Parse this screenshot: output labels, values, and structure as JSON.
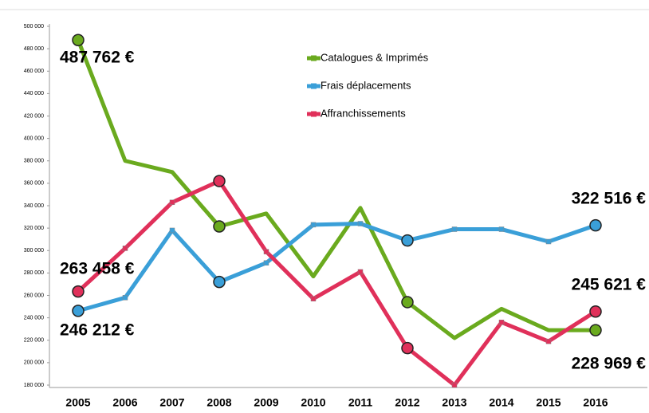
{
  "chart_data": {
    "type": "line",
    "categories": [
      "2005",
      "2006",
      "2007",
      "2008",
      "2009",
      "2010",
      "2011",
      "2012",
      "2013",
      "2014",
      "2015",
      "2016"
    ],
    "series": [
      {
        "name": "Catalogues & Imprimés",
        "color": "#6aaa1e",
        "values": [
          487762,
          380000,
          370000,
          321500,
          333000,
          277000,
          338000,
          254000,
          222000,
          248000,
          229000,
          228969
        ],
        "value_labels": [
          "487 762 €",
          null,
          null,
          null,
          null,
          null,
          null,
          null,
          null,
          null,
          null,
          "228 969 €"
        ]
      },
      {
        "name": "Frais déplacements",
        "color": "#3a9fd8",
        "values": [
          246212,
          258000,
          318000,
          272000,
          289000,
          323000,
          324000,
          309000,
          319000,
          319000,
          308000,
          322516
        ],
        "value_labels": [
          "246 212 €",
          null,
          null,
          null,
          null,
          null,
          null,
          null,
          null,
          null,
          null,
          "322 516 €"
        ]
      },
      {
        "name": "Affranchissements",
        "color": "#e0305a",
        "values": [
          263458,
          302000,
          343000,
          362000,
          299000,
          257000,
          281000,
          213000,
          180000,
          236000,
          219000,
          245621
        ],
        "value_labels": [
          "263 458 €",
          null,
          null,
          null,
          null,
          null,
          null,
          null,
          null,
          null,
          null,
          "245 621 €"
        ]
      }
    ],
    "ylim": [
      180000,
      500000
    ],
    "yticks": [
      {
        "value": 180000,
        "label": "180 000"
      },
      {
        "value": 200000,
        "label": "200 000"
      },
      {
        "value": 220000,
        "label": "220 000"
      },
      {
        "value": 240000,
        "label": "240 000"
      },
      {
        "value": 260000,
        "label": "260 000"
      },
      {
        "value": 280000,
        "label": "280 000"
      },
      {
        "value": 300000,
        "label": "300 000"
      },
      {
        "value": 320000,
        "label": "320 000"
      },
      {
        "value": 340000,
        "label": "340 000"
      },
      {
        "value": 360000,
        "label": "360 000"
      },
      {
        "value": 380000,
        "label": "380 000"
      },
      {
        "value": 400000,
        "label": "400 000"
      },
      {
        "value": 420000,
        "label": "420 000"
      },
      {
        "value": 440000,
        "label": "440 000"
      },
      {
        "value": 460000,
        "label": "460 000"
      },
      {
        "value": 480000,
        "label": "480 000"
      },
      {
        "value": 500000,
        "label": "500 000"
      }
    ],
    "grid": false
  }
}
